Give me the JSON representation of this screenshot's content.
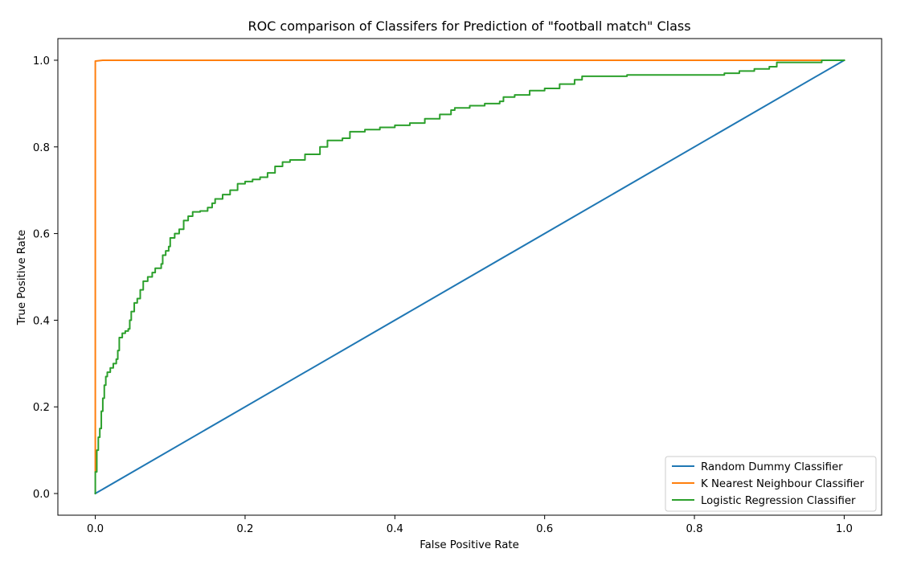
{
  "chart_data": {
    "type": "line",
    "title": "ROC comparison of Classifers for Prediction of \"football match\" Class",
    "xlabel": "False Positive Rate",
    "ylabel": "True Positive Rate",
    "xlim": [
      -0.05,
      1.05
    ],
    "ylim": [
      -0.05,
      1.05
    ],
    "xticks": [
      0.0,
      0.2,
      0.4,
      0.6,
      0.8,
      1.0
    ],
    "xtick_labels": [
      "0.0",
      "0.2",
      "0.4",
      "0.6",
      "0.8",
      "1.0"
    ],
    "yticks": [
      0.0,
      0.2,
      0.4,
      0.6,
      0.8,
      1.0
    ],
    "ytick_labels": [
      "0.0",
      "0.2",
      "0.4",
      "0.6",
      "0.8",
      "1.0"
    ],
    "grid": false,
    "legend_position": "bottom-right",
    "series": [
      {
        "name": "Random Dummy Classifier",
        "color": "#1f77b4",
        "step": false,
        "points": [
          [
            0.0,
            0.0
          ],
          [
            1.0,
            1.0
          ]
        ]
      },
      {
        "name": "K Nearest Neighbour Classifier",
        "color": "#ff7f0e",
        "step": false,
        "points": [
          [
            0.0,
            0.05
          ],
          [
            0.0,
            0.998
          ],
          [
            0.01,
            1.0
          ],
          [
            1.0,
            1.0
          ]
        ]
      },
      {
        "name": "Logistic Regression Classifier",
        "color": "#2ca02c",
        "step": true,
        "points": [
          [
            0.0,
            0.0
          ],
          [
            0.0,
            0.05
          ],
          [
            0.002,
            0.1
          ],
          [
            0.004,
            0.13
          ],
          [
            0.006,
            0.15
          ],
          [
            0.008,
            0.19
          ],
          [
            0.01,
            0.22
          ],
          [
            0.012,
            0.25
          ],
          [
            0.014,
            0.27
          ],
          [
            0.016,
            0.28
          ],
          [
            0.02,
            0.29
          ],
          [
            0.024,
            0.3
          ],
          [
            0.028,
            0.31
          ],
          [
            0.03,
            0.33
          ],
          [
            0.032,
            0.36
          ],
          [
            0.036,
            0.37
          ],
          [
            0.04,
            0.375
          ],
          [
            0.044,
            0.38
          ],
          [
            0.046,
            0.4
          ],
          [
            0.048,
            0.42
          ],
          [
            0.052,
            0.44
          ],
          [
            0.056,
            0.45
          ],
          [
            0.06,
            0.47
          ],
          [
            0.064,
            0.49
          ],
          [
            0.07,
            0.5
          ],
          [
            0.076,
            0.51
          ],
          [
            0.08,
            0.52
          ],
          [
            0.088,
            0.53
          ],
          [
            0.09,
            0.55
          ],
          [
            0.094,
            0.56
          ],
          [
            0.098,
            0.57
          ],
          [
            0.1,
            0.59
          ],
          [
            0.106,
            0.6
          ],
          [
            0.112,
            0.61
          ],
          [
            0.118,
            0.63
          ],
          [
            0.124,
            0.64
          ],
          [
            0.13,
            0.65
          ],
          [
            0.14,
            0.652
          ],
          [
            0.15,
            0.66
          ],
          [
            0.156,
            0.67
          ],
          [
            0.16,
            0.68
          ],
          [
            0.17,
            0.69
          ],
          [
            0.18,
            0.7
          ],
          [
            0.19,
            0.715
          ],
          [
            0.2,
            0.72
          ],
          [
            0.21,
            0.725
          ],
          [
            0.22,
            0.73
          ],
          [
            0.23,
            0.74
          ],
          [
            0.24,
            0.755
          ],
          [
            0.25,
            0.765
          ],
          [
            0.26,
            0.77
          ],
          [
            0.28,
            0.783
          ],
          [
            0.3,
            0.8
          ],
          [
            0.31,
            0.815
          ],
          [
            0.33,
            0.82
          ],
          [
            0.34,
            0.835
          ],
          [
            0.36,
            0.84
          ],
          [
            0.38,
            0.845
          ],
          [
            0.4,
            0.85
          ],
          [
            0.42,
            0.855
          ],
          [
            0.44,
            0.865
          ],
          [
            0.46,
            0.875
          ],
          [
            0.475,
            0.885
          ],
          [
            0.48,
            0.89
          ],
          [
            0.5,
            0.895
          ],
          [
            0.52,
            0.9
          ],
          [
            0.54,
            0.905
          ],
          [
            0.545,
            0.915
          ],
          [
            0.56,
            0.92
          ],
          [
            0.58,
            0.93
          ],
          [
            0.6,
            0.935
          ],
          [
            0.62,
            0.945
          ],
          [
            0.64,
            0.955
          ],
          [
            0.65,
            0.963
          ],
          [
            0.7,
            0.963
          ],
          [
            0.71,
            0.966
          ],
          [
            0.8,
            0.966
          ],
          [
            0.84,
            0.97
          ],
          [
            0.86,
            0.975
          ],
          [
            0.88,
            0.98
          ],
          [
            0.9,
            0.985
          ],
          [
            0.91,
            0.995
          ],
          [
            0.96,
            0.995
          ],
          [
            0.97,
            1.0
          ],
          [
            1.0,
            1.0
          ]
        ]
      }
    ]
  }
}
